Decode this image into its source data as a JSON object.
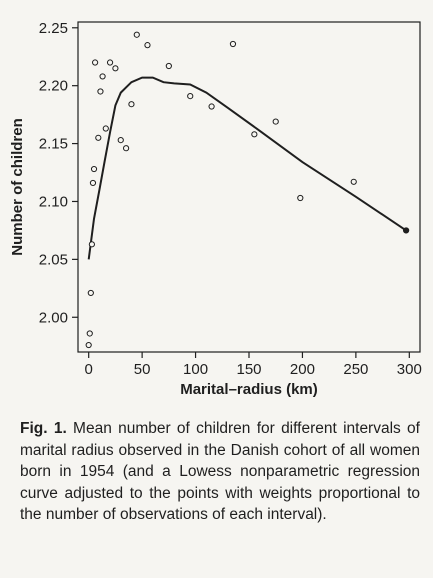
{
  "chart_data": {
    "type": "scatter",
    "xlabel": "Marital–radius (km)",
    "ylabel": "Number of children",
    "xlim": [
      -10,
      310
    ],
    "ylim": [
      1.97,
      2.255
    ],
    "xticks": [
      0,
      50,
      100,
      150,
      200,
      250,
      300
    ],
    "yticks": [
      2.0,
      2.05,
      2.1,
      2.15,
      2.2,
      2.25
    ],
    "ytick_labels": [
      "2.00",
      "2.05",
      "2.10",
      "2.15",
      "2.20",
      "2.25"
    ],
    "grid": false,
    "points": [
      {
        "x": 0,
        "y": 1.976
      },
      {
        "x": 1,
        "y": 1.986
      },
      {
        "x": 2,
        "y": 2.021
      },
      {
        "x": 3,
        "y": 2.063
      },
      {
        "x": 4,
        "y": 2.116
      },
      {
        "x": 5,
        "y": 2.128
      },
      {
        "x": 6,
        "y": 2.22
      },
      {
        "x": 9,
        "y": 2.155
      },
      {
        "x": 11,
        "y": 2.195
      },
      {
        "x": 13,
        "y": 2.208
      },
      {
        "x": 16,
        "y": 2.163
      },
      {
        "x": 20,
        "y": 2.22
      },
      {
        "x": 25,
        "y": 2.215
      },
      {
        "x": 30,
        "y": 2.153
      },
      {
        "x": 35,
        "y": 2.146
      },
      {
        "x": 40,
        "y": 2.184
      },
      {
        "x": 45,
        "y": 2.244
      },
      {
        "x": 55,
        "y": 2.235
      },
      {
        "x": 75,
        "y": 2.217
      },
      {
        "x": 95,
        "y": 2.191
      },
      {
        "x": 115,
        "y": 2.182
      },
      {
        "x": 135,
        "y": 2.236
      },
      {
        "x": 155,
        "y": 2.158
      },
      {
        "x": 175,
        "y": 2.169
      },
      {
        "x": 198,
        "y": 2.103
      },
      {
        "x": 248,
        "y": 2.117
      },
      {
        "x": 297,
        "y": 2.075
      }
    ],
    "lowess_curve": [
      {
        "x": 0,
        "y": 2.05
      },
      {
        "x": 5,
        "y": 2.085
      },
      {
        "x": 10,
        "y": 2.11
      },
      {
        "x": 15,
        "y": 2.135
      },
      {
        "x": 20,
        "y": 2.16
      },
      {
        "x": 25,
        "y": 2.183
      },
      {
        "x": 30,
        "y": 2.194
      },
      {
        "x": 40,
        "y": 2.203
      },
      {
        "x": 50,
        "y": 2.207
      },
      {
        "x": 60,
        "y": 2.207
      },
      {
        "x": 70,
        "y": 2.203
      },
      {
        "x": 80,
        "y": 2.202
      },
      {
        "x": 95,
        "y": 2.201
      },
      {
        "x": 110,
        "y": 2.194
      },
      {
        "x": 130,
        "y": 2.181
      },
      {
        "x": 160,
        "y": 2.161
      },
      {
        "x": 200,
        "y": 2.134
      },
      {
        "x": 250,
        "y": 2.104
      },
      {
        "x": 297,
        "y": 2.075
      }
    ]
  },
  "caption": {
    "label": "Fig. 1.",
    "text": "Mean number of children for different intervals of marital radius observed in the Danish cohort of all women born in 1954 (and a Lowess nonparametric regression curve adjusted to the points with weights proportional to the number of observations of each interval)."
  }
}
